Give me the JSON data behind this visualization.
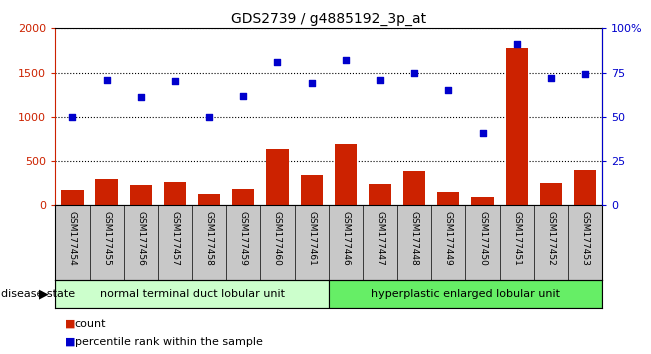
{
  "title": "GDS2739 / g4885192_3p_at",
  "samples": [
    "GSM177454",
    "GSM177455",
    "GSM177456",
    "GSM177457",
    "GSM177458",
    "GSM177459",
    "GSM177460",
    "GSM177461",
    "GSM177446",
    "GSM177447",
    "GSM177448",
    "GSM177449",
    "GSM177450",
    "GSM177451",
    "GSM177452",
    "GSM177453"
  ],
  "counts": [
    175,
    295,
    235,
    260,
    130,
    185,
    640,
    345,
    690,
    245,
    385,
    155,
    95,
    1780,
    255,
    395
  ],
  "percentiles": [
    50,
    71,
    61,
    70,
    50,
    62,
    81,
    69,
    82,
    71,
    75,
    65,
    41,
    91,
    72,
    74
  ],
  "groups": [
    {
      "label": "normal terminal duct lobular unit",
      "start": 0,
      "end": 8,
      "color": "#CCFFCC"
    },
    {
      "label": "hyperplastic enlarged lobular unit",
      "start": 8,
      "end": 16,
      "color": "#66EE66"
    }
  ],
  "left_ylim": [
    0,
    2000
  ],
  "left_yticks": [
    0,
    500,
    1000,
    1500,
    2000
  ],
  "left_yticklabels": [
    "0",
    "500",
    "1000",
    "1500",
    "2000"
  ],
  "right_ylim": [
    0,
    100
  ],
  "right_yticks": [
    0,
    25,
    50,
    75,
    100
  ],
  "right_yticklabels": [
    "0",
    "25",
    "50",
    "75",
    "100%"
  ],
  "bar_color": "#CC2200",
  "dot_color": "#0000CC",
  "disease_state_label": "disease state",
  "legend_count_label": "count",
  "legend_percentile_label": "percentile rank within the sample",
  "bg_color": "#C8C8C8",
  "axis_bg": "#FFFFFF"
}
